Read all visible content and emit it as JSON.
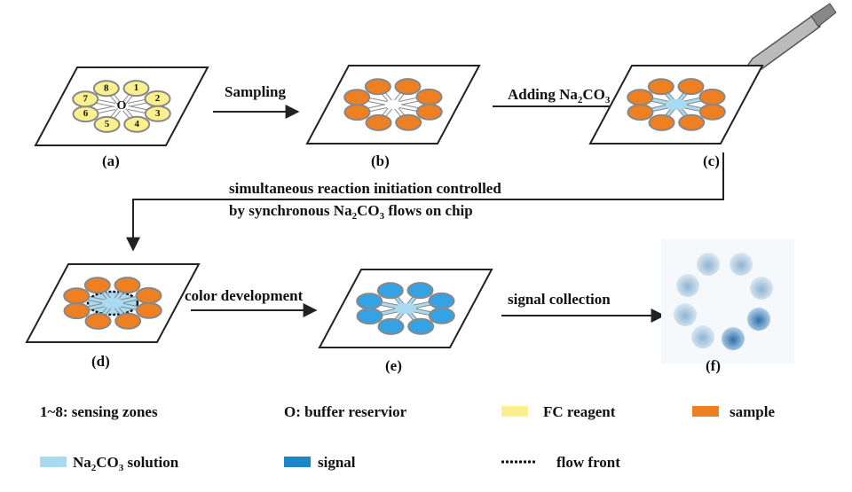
{
  "zone_numbers": [
    "1",
    "2",
    "3",
    "4",
    "5",
    "6",
    "7",
    "8"
  ],
  "buffer_label": "O",
  "panel_labels": [
    "(a)",
    "(b)",
    "(c)",
    "(d)",
    "(e)",
    "(f)"
  ],
  "steps": {
    "sampling": [
      "Sampling"
    ],
    "adding": [
      "Adding Na",
      "2",
      "CO",
      "3"
    ],
    "connector_line1": [
      "simultaneous reaction initiation controlled"
    ],
    "connector_line2": [
      "by synchronous Na",
      "2",
      "CO",
      "3",
      " flows on chip"
    ],
    "color_development": [
      "color development"
    ],
    "signal_collection": [
      "signal collection"
    ]
  },
  "legend": [
    [
      "1~8:  sensing zones"
    ],
    [
      "O: buffer reservior"
    ],
    [
      "FC  reagent"
    ],
    [
      "sample"
    ],
    [
      "Na",
      "2",
      "CO",
      "3",
      " solution"
    ],
    [
      "signal"
    ],
    [
      "flow front"
    ]
  ]
}
